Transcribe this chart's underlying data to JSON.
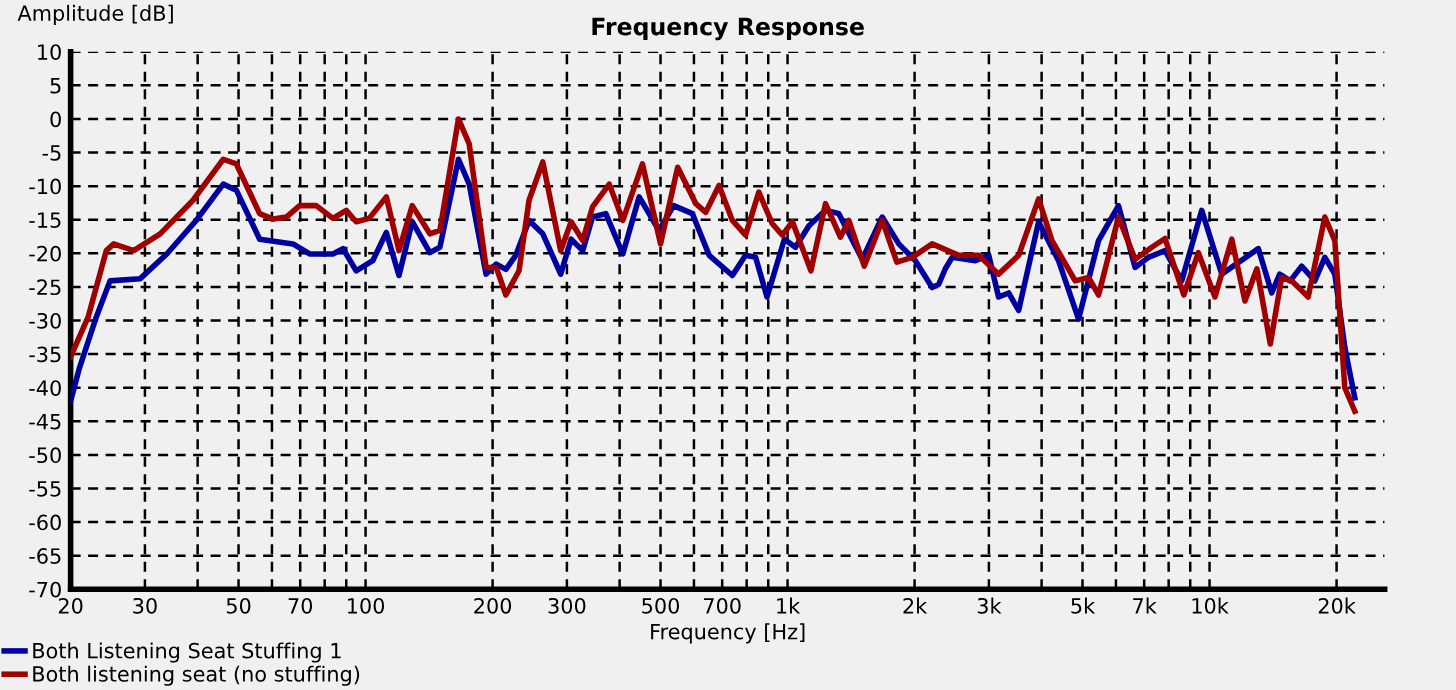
{
  "chart_data": {
    "type": "line",
    "title": "Frequency Response",
    "xlabel": "Frequency [Hz]",
    "ylabel": "Amplitude [dB]",
    "log": "x",
    "grid": true,
    "legend": "bottom left",
    "line_style": "solid",
    "xlim": [
      20,
      26000
    ],
    "ylim": [
      -70,
      10
    ],
    "xticks": [
      20,
      30,
      {
        "value": 40,
        "label": null
      },
      50,
      {
        "value": 60,
        "label": null
      },
      70,
      {
        "value": 80,
        "label": null
      },
      {
        "value": 90,
        "label": null
      },
      100,
      200,
      300,
      {
        "value": 400,
        "label": null
      },
      500,
      {
        "value": 600,
        "label": null
      },
      700,
      {
        "value": 800,
        "label": null
      },
      {
        "value": 900,
        "label": null
      },
      {
        "value": 1000,
        "label": "1k"
      },
      {
        "value": 2000,
        "label": "2k"
      },
      {
        "value": 3000,
        "label": "3k"
      },
      {
        "value": 4000,
        "label": null
      },
      {
        "value": 5000,
        "label": "5k"
      },
      {
        "value": 6000,
        "label": null
      },
      {
        "value": 7000,
        "label": "7k"
      },
      {
        "value": 8000,
        "label": null
      },
      {
        "value": 9000,
        "label": null
      },
      {
        "value": 10000,
        "label": "10k"
      },
      {
        "value": 20000,
        "label": "20k"
      }
    ],
    "yticks": [
      10,
      5,
      0,
      -5,
      -10,
      -15,
      -20,
      -25,
      -30,
      -35,
      -40,
      -45,
      -50,
      -55,
      -60,
      -65,
      -70
    ],
    "series": [
      {
        "name": "Both Listening Seat Stuffing 1",
        "color": "#0000a0",
        "x": [
          20,
          21,
          23,
          24.8,
          29.2,
          33.8,
          39.7,
          46,
          49.4,
          56.1,
          67.3,
          73.7,
          83.7,
          88.4,
          95,
          104,
          112,
          120,
          129,
          142,
          150,
          166,
          176,
          193,
          204,
          215,
          227,
          244,
          263,
          290,
          307,
          327,
          345,
          371,
          407,
          445,
          496,
          537,
          595,
          652,
          740,
          795,
          840,
          894,
          983,
          1044,
          1124,
          1230,
          1323,
          1503,
          1676,
          1835,
          2009,
          2201,
          2282,
          2365,
          2455,
          2785,
          2998,
          3163,
          3341,
          3529,
          3935,
          4387,
          4893,
          5457,
          6085,
          6662,
          7165,
          7844,
          8594,
          9583,
          10690,
          13050,
          14040,
          14660,
          15530,
          16530,
          17760,
          18760,
          19810,
          20920,
          22090
        ],
        "values": [
          -42,
          -37,
          -29.5,
          -24.1,
          -23.8,
          -20.1,
          -15.1,
          -9.7,
          -10.6,
          -17.9,
          -18.6,
          -20.1,
          -20.1,
          -19.3,
          -22.6,
          -21.1,
          -16.9,
          -23.3,
          -15.3,
          -19.9,
          -19.1,
          -6.0,
          -9.7,
          -23.1,
          -21.6,
          -22.4,
          -20.3,
          -15.1,
          -17.1,
          -23.1,
          -17.9,
          -19.6,
          -14.6,
          -14.1,
          -20.1,
          -11.6,
          -16.6,
          -12.9,
          -14.1,
          -20.3,
          -23.3,
          -20.3,
          -20.6,
          -26.5,
          -17.9,
          -19.1,
          -15.9,
          -13.6,
          -14.1,
          -20.9,
          -14.6,
          -18.6,
          -21.1,
          -25.1,
          -24.6,
          -22.3,
          -20.6,
          -21.1,
          -20.3,
          -26.5,
          -25.9,
          -28.5,
          -15.3,
          -21.1,
          -29.8,
          -18.1,
          -12.9,
          -22.1,
          -20.6,
          -19.6,
          -24.1,
          -13.6,
          -23.1,
          -19.3,
          -25.9,
          -23.1,
          -24.1,
          -21.9,
          -24.1,
          -20.6,
          -23.1,
          -34.0,
          -41.5
        ]
      },
      {
        "name": "Both listening seat (no stuffing)",
        "color": "#a00000",
        "x": [
          20,
          22,
          24.3,
          25.3,
          28.2,
          32.6,
          39,
          46,
          49.4,
          56.1,
          60.4,
          64.9,
          69.8,
          76.4,
          83.7,
          90,
          95,
          102,
          112,
          120,
          129,
          142,
          150,
          166,
          176,
          193,
          204,
          215,
          231,
          244,
          263,
          290,
          307,
          327,
          345,
          378,
          407,
          453,
          500,
          549,
          606,
          640,
          688,
          740,
          795,
          855,
          920,
          972,
          1027,
          1136,
          1230,
          1334,
          1397,
          1520,
          1676,
          1815,
          1974,
          2201,
          2545,
          2838,
          3163,
          3529,
          3935,
          4233,
          4804,
          5167,
          5457,
          6085,
          6662,
          7298,
          7844,
          8690,
          9408,
          10300,
          11290,
          12130,
          12950,
          13930,
          14820,
          15650,
          17130,
          18760,
          19810,
          20920,
          22090
        ],
        "values": [
          -35.4,
          -29.5,
          -19.6,
          -18.6,
          -19.6,
          -17.1,
          -12.1,
          -6.0,
          -6.7,
          -14.1,
          -14.9,
          -14.6,
          -12.9,
          -12.9,
          -14.8,
          -13.6,
          -15.3,
          -14.8,
          -11.6,
          -19.6,
          -12.9,
          -17.1,
          -16.6,
          0,
          -3.7,
          -22.1,
          -22.1,
          -26.2,
          -22.6,
          -12.1,
          -6.4,
          -19.6,
          -15.3,
          -18.1,
          -13.1,
          -9.7,
          -15.1,
          -6.7,
          -18.6,
          -7.2,
          -12.6,
          -13.9,
          -9.9,
          -15.1,
          -17.3,
          -10.9,
          -15.6,
          -17.3,
          -15.3,
          -22.6,
          -12.6,
          -17.6,
          -15.1,
          -21.9,
          -15.1,
          -21.3,
          -20.6,
          -18.6,
          -20.3,
          -20.3,
          -23.1,
          -20.3,
          -11.9,
          -18.1,
          -24.1,
          -23.6,
          -26.2,
          -14.6,
          -20.9,
          -19.1,
          -17.8,
          -26.2,
          -19.9,
          -26.5,
          -17.9,
          -27.1,
          -22.3,
          -33.5,
          -23.6,
          -24.1,
          -26.5,
          -14.6,
          -18.1,
          -40.0,
          -43.5
        ]
      }
    ]
  }
}
